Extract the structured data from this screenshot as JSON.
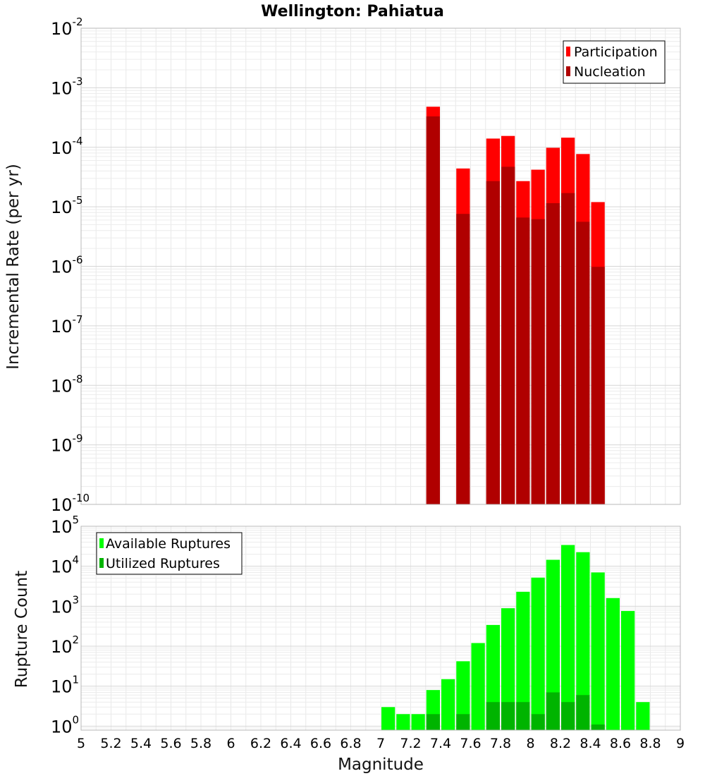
{
  "chart_data": [
    {
      "type": "bar",
      "title": "Wellington: Pahiatua",
      "ylabel": "Incremental Rate (per yr)",
      "xlabel": "",
      "yscale": "log",
      "ylim_exp": [
        -10,
        -2
      ],
      "xlim": [
        5,
        9
      ],
      "bar_width": 0.1,
      "legend_position": "top-right",
      "series": [
        {
          "name": "Participation",
          "color": "#ff0000",
          "x": [
            7.35,
            7.55,
            7.75,
            7.85,
            7.95,
            8.05,
            8.15,
            8.25,
            8.35,
            8.45
          ],
          "values": [
            0.00048,
            4.4e-05,
            0.00014,
            0.000155,
            2.7e-05,
            4.2e-05,
            9.8e-05,
            0.000145,
            7.7e-05,
            1.2e-05
          ]
        },
        {
          "name": "Nucleation",
          "color": "#b00000",
          "x": [
            7.35,
            7.55,
            7.75,
            7.85,
            7.95,
            8.05,
            8.15,
            8.25,
            8.35,
            8.45
          ],
          "values": [
            0.00033,
            7.6e-06,
            2.7e-05,
            4.7e-05,
            6.6e-06,
            6.2e-06,
            1.15e-05,
            1.7e-05,
            5.6e-06,
            9.8e-07
          ]
        }
      ]
    },
    {
      "type": "bar",
      "title": "",
      "ylabel": "Rupture Count",
      "xlabel": "Magnitude",
      "yscale": "log",
      "ylim_exp": [
        -0.1,
        5
      ],
      "xlim": [
        5,
        9
      ],
      "bar_width": 0.1,
      "legend_position": "top-left",
      "xticks": [
        "5",
        "5.2",
        "5.4",
        "5.6",
        "5.8",
        "6",
        "6.2",
        "6.4",
        "6.6",
        "6.8",
        "7",
        "7.2",
        "7.4",
        "7.6",
        "7.8",
        "8",
        "8.2",
        "8.4",
        "8.6",
        "8.8",
        "9"
      ],
      "series": [
        {
          "name": "Available Ruptures",
          "color": "#00ff00",
          "x": [
            7.05,
            7.15,
            7.25,
            7.35,
            7.45,
            7.55,
            7.65,
            7.75,
            7.85,
            7.95,
            8.05,
            8.15,
            8.25,
            8.35,
            8.45,
            8.55,
            8.65,
            8.75
          ],
          "values": [
            3,
            2,
            2,
            8,
            15,
            42,
            120,
            340,
            890,
            2300,
            5200,
            14500,
            34000,
            22500,
            7000,
            1600,
            760,
            4
          ]
        },
        {
          "name": "Utilized Ruptures",
          "color": "#00b400",
          "x": [
            7.35,
            7.55,
            7.75,
            7.85,
            7.95,
            8.05,
            8.15,
            8.25,
            8.35,
            8.45
          ],
          "values": [
            2,
            2,
            4,
            4,
            4,
            2,
            7,
            4,
            6,
            1.1
          ]
        }
      ]
    }
  ]
}
